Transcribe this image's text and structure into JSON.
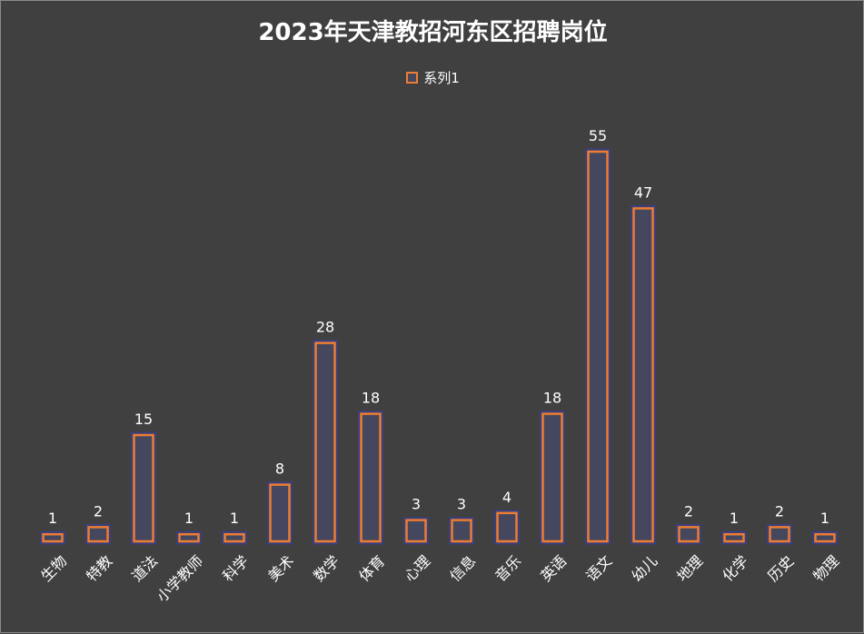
{
  "chart_data": {
    "type": "bar",
    "title": "2023年天津教招河东区招聘岗位",
    "xlabel": "",
    "ylabel": "",
    "ylim": [
      0,
      55
    ],
    "grid": false,
    "legend_position": "top-center",
    "series": [
      {
        "name": "系列1",
        "values": [
          1,
          2,
          15,
          1,
          1,
          8,
          28,
          18,
          3,
          3,
          4,
          18,
          55,
          47,
          2,
          1,
          2,
          1
        ]
      }
    ],
    "categories": [
      "生物",
      "特教",
      "道法",
      "小学教师",
      "科学",
      "美术",
      "数学",
      "体育",
      "心理",
      "信息",
      "音乐",
      "英语",
      "语文",
      "幼儿",
      "地理",
      "化学",
      "历史",
      "物理"
    ]
  },
  "colors": {
    "background": "#404040",
    "bar_border": "#ED7D31",
    "bar_fill": "#44475e",
    "bar_shadow": "#3b3f7a",
    "text": "#ffffff"
  }
}
